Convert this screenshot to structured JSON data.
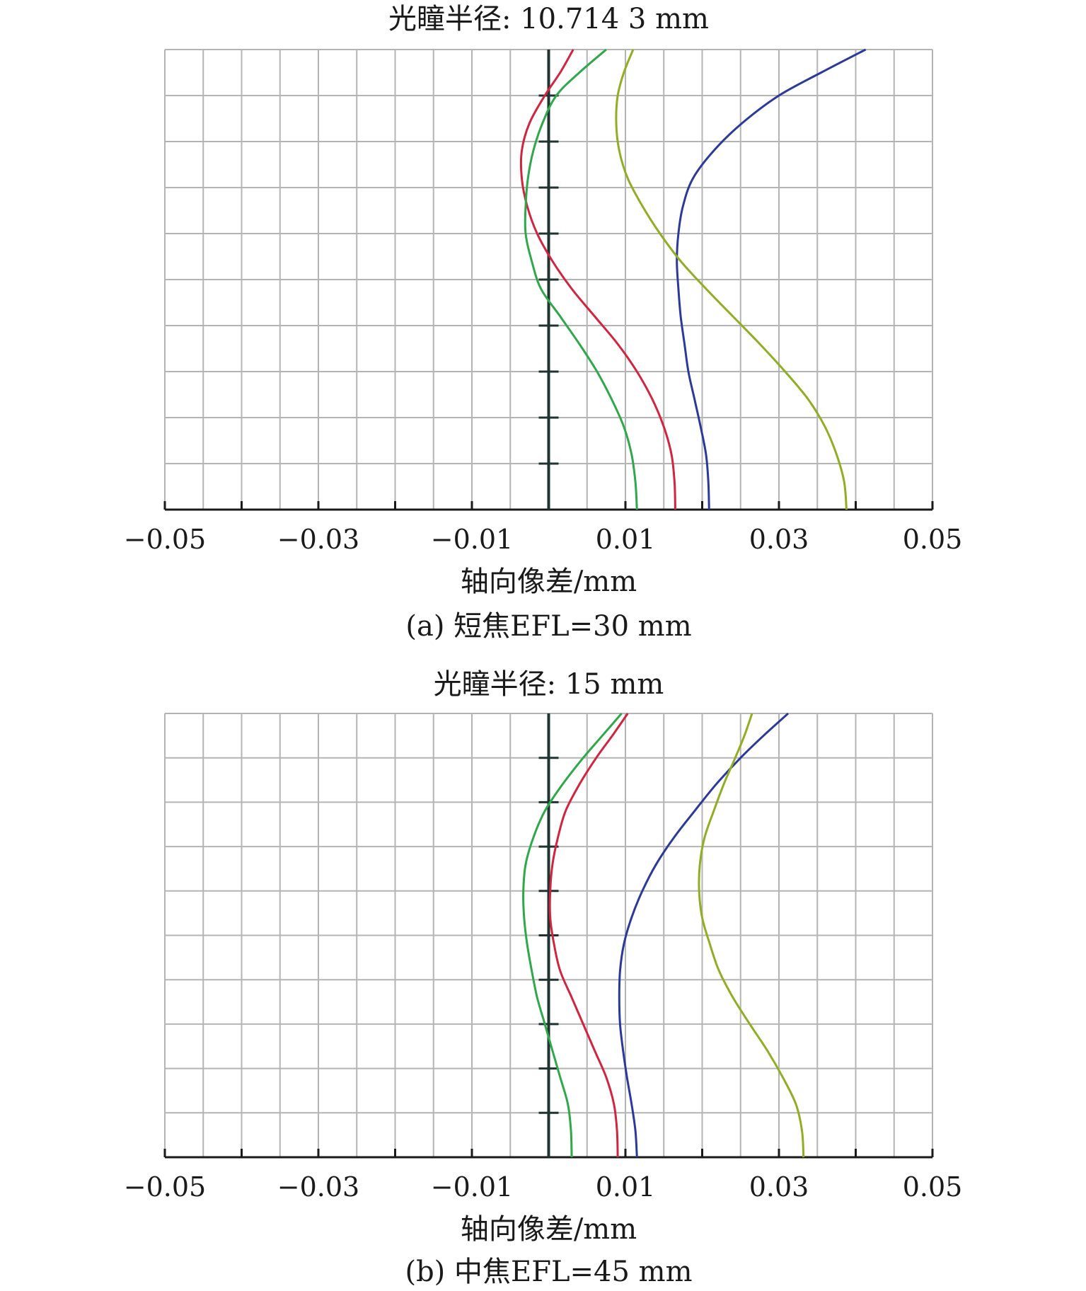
{
  "chart_data": [
    {
      "type": "line",
      "title": "光瞳半径: 10.714 3 mm",
      "xlabel": "轴向像差/mm",
      "caption": "(a) 短焦EFL=30 mm",
      "xlim": [
        -0.05,
        0.05
      ],
      "ylim": [
        0,
        1
      ],
      "x_ticks": [
        -0.05,
        -0.04,
        -0.03,
        -0.02,
        -0.01,
        0,
        0.01,
        0.02,
        0.03,
        0.04,
        0.05
      ],
      "x_tick_labels": [
        "−0.05",
        "−0.03",
        "−0.01",
        "0.01",
        "0.03",
        "0.05"
      ],
      "x_tick_label_values": [
        -0.05,
        -0.03,
        -0.01,
        0.01,
        0.03,
        0.05
      ],
      "grid": true,
      "series": [
        {
          "color": "#2b3a9a",
          "x": [
            0.0209,
            0.0208,
            0.0205,
            0.0198,
            0.019,
            0.0182,
            0.0177,
            0.0172,
            0.0169,
            0.0167,
            0.0169,
            0.0175,
            0.0188,
            0.0215,
            0.0252,
            0.03,
            0.0355,
            0.0413
          ],
          "y": [
            0,
            0.06,
            0.12,
            0.18,
            0.24,
            0.3,
            0.36,
            0.42,
            0.48,
            0.54,
            0.6,
            0.66,
            0.72,
            0.78,
            0.84,
            0.9,
            0.95,
            1.0
          ]
        },
        {
          "color": "#d2243f",
          "x": [
            0.0165,
            0.0164,
            0.016,
            0.015,
            0.0135,
            0.0115,
            0.009,
            0.006,
            0.003,
            0.0005,
            -0.0015,
            -0.0028,
            -0.0035,
            -0.0035,
            -0.0025,
            -0.0005,
            0.0015,
            0.0032
          ],
          "y": [
            0,
            0.06,
            0.12,
            0.18,
            0.24,
            0.3,
            0.36,
            0.42,
            0.48,
            0.54,
            0.6,
            0.66,
            0.72,
            0.78,
            0.84,
            0.9,
            0.95,
            1.0
          ]
        },
        {
          "color": "#2ea84a",
          "x": [
            0.0115,
            0.0113,
            0.0108,
            0.0098,
            0.0082,
            0.0063,
            0.004,
            0.0015,
            -0.001,
            -0.0022,
            -0.003,
            -0.003,
            -0.0027,
            -0.002,
            -0.0008,
            0.001,
            0.004,
            0.0075
          ],
          "y": [
            0,
            0.06,
            0.12,
            0.18,
            0.24,
            0.3,
            0.36,
            0.42,
            0.48,
            0.54,
            0.6,
            0.66,
            0.72,
            0.78,
            0.84,
            0.9,
            0.95,
            1.0
          ]
        },
        {
          "color": "#8fae22",
          "x": [
            0.0388,
            0.0385,
            0.0375,
            0.036,
            0.0338,
            0.0308,
            0.0275,
            0.024,
            0.0205,
            0.0172,
            0.0145,
            0.0122,
            0.0103,
            0.0092,
            0.0088,
            0.009,
            0.0098,
            0.011
          ],
          "y": [
            0,
            0.06,
            0.12,
            0.18,
            0.24,
            0.3,
            0.36,
            0.42,
            0.48,
            0.54,
            0.6,
            0.66,
            0.72,
            0.78,
            0.84,
            0.9,
            0.95,
            1.0
          ]
        }
      ]
    },
    {
      "type": "line",
      "title": "光瞳半径: 15 mm",
      "xlabel": "轴向像差/mm",
      "caption": "(b) 中焦EFL=45 mm",
      "xlim": [
        -0.05,
        0.05
      ],
      "ylim": [
        0,
        1
      ],
      "x_ticks": [
        -0.05,
        -0.04,
        -0.03,
        -0.02,
        -0.01,
        0,
        0.01,
        0.02,
        0.03,
        0.04,
        0.05
      ],
      "x_tick_labels": [
        "−0.05",
        "−0.03",
        "−0.01",
        "0.01",
        "0.03",
        "0.05"
      ],
      "x_tick_label_values": [
        -0.05,
        -0.03,
        -0.01,
        0.01,
        0.03,
        0.05
      ],
      "grid": true,
      "series": [
        {
          "color": "#2b3a9a",
          "x": [
            0.0115,
            0.0113,
            0.0108,
            0.0102,
            0.0097,
            0.0093,
            0.0092,
            0.0093,
            0.0098,
            0.0108,
            0.0122,
            0.014,
            0.0163,
            0.019,
            0.0218,
            0.025,
            0.028,
            0.0312
          ],
          "y": [
            0,
            0.06,
            0.12,
            0.18,
            0.24,
            0.3,
            0.36,
            0.42,
            0.48,
            0.54,
            0.6,
            0.66,
            0.72,
            0.78,
            0.84,
            0.9,
            0.95,
            1.0
          ]
        },
        {
          "color": "#d2243f",
          "x": [
            0.009,
            0.0089,
            0.0085,
            0.0075,
            0.006,
            0.0045,
            0.003,
            0.0015,
            0.0007,
            0.0002,
            0.0002,
            0.0005,
            0.0012,
            0.0022,
            0.004,
            0.0062,
            0.0083,
            0.0103
          ],
          "y": [
            0,
            0.06,
            0.12,
            0.18,
            0.24,
            0.3,
            0.36,
            0.42,
            0.48,
            0.54,
            0.6,
            0.66,
            0.72,
            0.78,
            0.84,
            0.9,
            0.95,
            1.0
          ]
        },
        {
          "color": "#2ea84a",
          "x": [
            0.003,
            0.0029,
            0.0025,
            0.0015,
            0.0005,
            -0.0005,
            -0.0015,
            -0.0022,
            -0.0028,
            -0.0032,
            -0.0033,
            -0.003,
            -0.002,
            -0.0005,
            0.0018,
            0.0045,
            0.007,
            0.0095
          ],
          "y": [
            0,
            0.06,
            0.12,
            0.18,
            0.24,
            0.3,
            0.36,
            0.42,
            0.48,
            0.54,
            0.6,
            0.66,
            0.72,
            0.78,
            0.84,
            0.9,
            0.95,
            1.0
          ]
        },
        {
          "color": "#8fae22",
          "x": [
            0.0332,
            0.033,
            0.0322,
            0.0305,
            0.0285,
            0.0262,
            0.024,
            0.0222,
            0.021,
            0.02,
            0.0196,
            0.0197,
            0.0203,
            0.0215,
            0.0228,
            0.0243,
            0.0255,
            0.0265
          ],
          "y": [
            0,
            0.06,
            0.12,
            0.18,
            0.24,
            0.3,
            0.36,
            0.42,
            0.48,
            0.54,
            0.6,
            0.66,
            0.72,
            0.78,
            0.84,
            0.9,
            0.95,
            1.0
          ]
        }
      ]
    }
  ]
}
